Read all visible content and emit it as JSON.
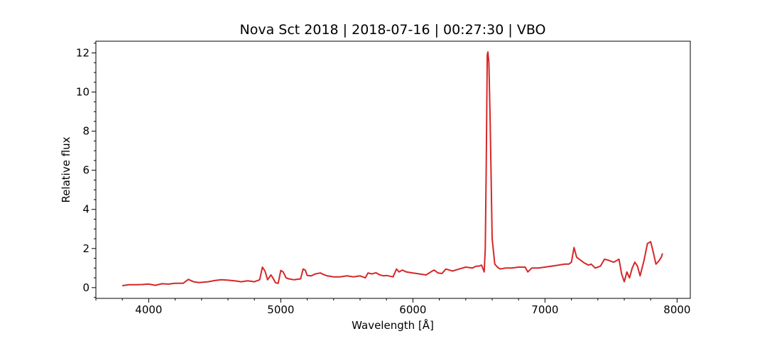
{
  "chart_data": {
    "type": "line",
    "title": "Nova Sct 2018 | 2018-07-16 | 00:27:30 | VBO",
    "xlabel": "Wavelength [Å]",
    "ylabel": "Relative flux",
    "xlim": [
      3600,
      8100
    ],
    "ylim": [
      -0.55,
      12.6
    ],
    "xticks": [
      4000,
      5000,
      6000,
      7000,
      8000
    ],
    "xtick_labels": [
      "4000",
      "5000",
      "6000",
      "7000",
      "8000"
    ],
    "yticks": [
      0,
      2,
      4,
      6,
      8,
      10,
      12
    ],
    "ytick_labels": [
      "0",
      "2",
      "4",
      "6",
      "8",
      "10",
      "12"
    ],
    "x_minor_step": 200,
    "y_minor_step": 0.5,
    "grid": false,
    "series": [
      {
        "color": "#d62728",
        "x": [
          3800,
          3850,
          3900,
          3950,
          4000,
          4050,
          4100,
          4150,
          4200,
          4260,
          4300,
          4340,
          4380,
          4450,
          4500,
          4550,
          4600,
          4650,
          4700,
          4750,
          4800,
          4840,
          4861,
          4880,
          4900,
          4925,
          4940,
          4960,
          4980,
          5000,
          5018,
          5040,
          5060,
          5100,
          5150,
          5169,
          5185,
          5200,
          5230,
          5260,
          5300,
          5320,
          5350,
          5400,
          5450,
          5500,
          5550,
          5600,
          5640,
          5660,
          5690,
          5720,
          5750,
          5780,
          5800,
          5850,
          5876,
          5895,
          5920,
          5950,
          6000,
          6050,
          6100,
          6140,
          6160,
          6190,
          6220,
          6250,
          6300,
          6350,
          6400,
          6450,
          6480,
          6500,
          6520,
          6540,
          6548,
          6555,
          6563,
          6568,
          6575,
          6585,
          6600,
          6620,
          6640,
          6660,
          6700,
          6750,
          6800,
          6850,
          6870,
          6900,
          6950,
          7000,
          7050,
          7100,
          7150,
          7180,
          7200,
          7220,
          7240,
          7270,
          7300,
          7330,
          7350,
          7380,
          7400,
          7420,
          7450,
          7480,
          7520,
          7560,
          7580,
          7600,
          7620,
          7640,
          7660,
          7680,
          7700,
          7720,
          7750,
          7775,
          7800,
          7820,
          7840,
          7860,
          7880,
          7890
        ],
        "y": [
          0.1,
          0.15,
          0.15,
          0.16,
          0.18,
          0.12,
          0.2,
          0.18,
          0.22,
          0.22,
          0.42,
          0.3,
          0.26,
          0.3,
          0.36,
          0.4,
          0.38,
          0.35,
          0.3,
          0.35,
          0.3,
          0.4,
          1.05,
          0.85,
          0.4,
          0.65,
          0.5,
          0.25,
          0.22,
          0.88,
          0.8,
          0.5,
          0.45,
          0.4,
          0.45,
          0.95,
          0.9,
          0.62,
          0.6,
          0.7,
          0.75,
          0.68,
          0.6,
          0.55,
          0.55,
          0.6,
          0.55,
          0.6,
          0.5,
          0.75,
          0.7,
          0.76,
          0.65,
          0.6,
          0.62,
          0.55,
          0.95,
          0.8,
          0.9,
          0.8,
          0.75,
          0.7,
          0.65,
          0.82,
          0.9,
          0.75,
          0.72,
          0.95,
          0.85,
          0.95,
          1.05,
          1.0,
          1.1,
          1.1,
          1.15,
          0.8,
          2.0,
          6.0,
          11.9,
          12.05,
          11.5,
          8.5,
          2.5,
          1.2,
          1.05,
          0.95,
          1.0,
          1.0,
          1.05,
          1.05,
          0.8,
          1.0,
          1.0,
          1.05,
          1.1,
          1.15,
          1.2,
          1.2,
          1.3,
          2.05,
          1.55,
          1.4,
          1.25,
          1.15,
          1.2,
          1.0,
          1.05,
          1.1,
          1.45,
          1.4,
          1.3,
          1.45,
          0.7,
          0.3,
          0.8,
          0.5,
          1.0,
          1.3,
          1.1,
          0.6,
          1.4,
          2.25,
          2.35,
          1.8,
          1.2,
          1.35,
          1.55,
          1.75
        ]
      }
    ]
  }
}
